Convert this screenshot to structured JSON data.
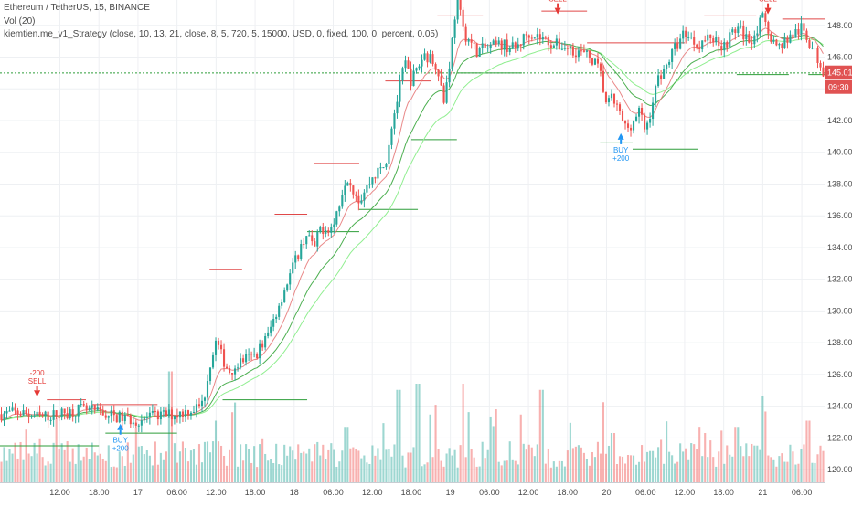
{
  "legend": {
    "symbol_line": "Ethereum / TetherUS, 15, BINANCE",
    "volume_line": "Vol (20)",
    "strategy_line": "kiemtien.me_v1_Strategy (close, 10, 13, 21, close, 8, 5, 720, 5, 15000, USD, 0, fixed, 100, 0, percent, 0.05)"
  },
  "colors": {
    "up": "#26a69a",
    "down": "#ef5350",
    "ema_fast": "#90ee90",
    "ema_slow": "#4caf50",
    "ema_red": "#e57373",
    "stop_line": "#e04848",
    "support_line": "#2e9e3a",
    "grid": "#eef0f3",
    "price_tag": "#e05252",
    "buy": "#2196f3",
    "sell": "#e53935"
  },
  "chart_data": {
    "type": "candlestick",
    "symbol": "Ethereum / TetherUS",
    "interval": "15",
    "exchange": "BINANCE",
    "y_ticks": [
      "120.00",
      "122.00",
      "124.00",
      "126.00",
      "128.00",
      "130.00",
      "132.00",
      "134.00",
      "136.00",
      "138.00",
      "140.00",
      "142.00",
      "144.00",
      "146.00",
      "148.00"
    ],
    "ylim": [
      119.2,
      149.6
    ],
    "x_ticks": [
      "12:00",
      "18:00",
      "17",
      "06:00",
      "12:00",
      "18:00",
      "18",
      "06:00",
      "12:00",
      "18:00",
      "19",
      "06:00",
      "12:00",
      "18:00",
      "20",
      "06:00",
      "12:00",
      "18:00",
      "21",
      "06:00"
    ],
    "x_tick_time_h": [
      12,
      18,
      24,
      30,
      36,
      42,
      48,
      54,
      60,
      66,
      72,
      78,
      84,
      90,
      96,
      102,
      108,
      114,
      120,
      126
    ],
    "time_range_h": [
      2.8,
      129.5
    ],
    "last_price": "145.01",
    "countdown": "09:30",
    "last_price_value": 145.01,
    "dashed_level": 145.0,
    "price_path": [
      [
        2.8,
        123.5
      ],
      [
        6,
        123.6
      ],
      [
        9,
        123.3
      ],
      [
        12,
        123.5
      ],
      [
        15,
        123.8
      ],
      [
        18,
        123.6
      ],
      [
        21,
        123.3
      ],
      [
        24,
        123.1
      ],
      [
        27,
        123.4
      ],
      [
        30,
        123.5
      ],
      [
        33,
        123.9
      ],
      [
        34,
        124.2
      ],
      [
        35,
        126.5
      ],
      [
        36,
        128.1
      ],
      [
        37,
        127.0
      ],
      [
        38,
        126.2
      ],
      [
        40,
        126.9
      ],
      [
        42,
        127.2
      ],
      [
        44,
        128.5
      ],
      [
        46,
        130.8
      ],
      [
        48,
        133.0
      ],
      [
        50,
        135.0
      ],
      [
        51,
        133.8
      ],
      [
        52,
        135.2
      ],
      [
        54,
        135.3
      ],
      [
        56,
        138.6
      ],
      [
        58,
        137.0
      ],
      [
        60,
        138.4
      ],
      [
        62,
        139.2
      ],
      [
        63,
        141.8
      ],
      [
        64,
        143.6
      ],
      [
        65,
        145.7
      ],
      [
        66,
        144.5
      ],
      [
        68,
        146.2
      ],
      [
        70,
        145.5
      ],
      [
        71,
        143.2
      ],
      [
        72,
        146.0
      ],
      [
        73,
        149.8
      ],
      [
        74,
        147.6
      ],
      [
        76,
        146.4
      ],
      [
        78,
        146.6
      ],
      [
        80,
        146.8
      ],
      [
        82,
        146.5
      ],
      [
        84,
        147.6
      ],
      [
        86,
        147.2
      ],
      [
        88,
        146.8
      ],
      [
        90,
        146.6
      ],
      [
        92,
        146.3
      ],
      [
        94,
        145.8
      ],
      [
        95,
        145.0
      ],
      [
        96,
        143.0
      ],
      [
        97,
        143.4
      ],
      [
        98,
        142.4
      ],
      [
        99,
        141.5
      ],
      [
        100,
        141.9
      ],
      [
        101,
        142.6
      ],
      [
        102,
        141.3
      ],
      [
        103,
        143.0
      ],
      [
        104,
        144.8
      ],
      [
        105,
        145.3
      ],
      [
        106,
        146.2
      ],
      [
        108,
        147.6
      ],
      [
        110,
        146.8
      ],
      [
        112,
        147.3
      ],
      [
        114,
        146.7
      ],
      [
        116,
        147.9
      ],
      [
        118,
        147.0
      ],
      [
        120,
        148.4
      ],
      [
        121,
        147.6
      ],
      [
        122,
        146.6
      ],
      [
        124,
        147.2
      ],
      [
        126,
        147.8
      ],
      [
        128,
        146.3
      ],
      [
        129.5,
        145.0
      ]
    ],
    "volume_spikes": [
      [
        9,
        0.35
      ],
      [
        21,
        0.25
      ],
      [
        29,
        0.9
      ],
      [
        36,
        0.5
      ],
      [
        43,
        0.35
      ],
      [
        56,
        0.45
      ],
      [
        64,
        0.75
      ],
      [
        67,
        0.8
      ],
      [
        69,
        0.55
      ],
      [
        74,
        0.8
      ],
      [
        83,
        0.55
      ],
      [
        86,
        0.75
      ],
      [
        95.5,
        0.65
      ],
      [
        97,
        0.4
      ],
      [
        111,
        0.4
      ],
      [
        116,
        0.45
      ],
      [
        120,
        0.7
      ],
      [
        127,
        0.5
      ]
    ],
    "signals": [
      {
        "type": "sell",
        "label": "SELL",
        "qty": "-200",
        "t": 8.5,
        "price": 124.6
      },
      {
        "type": "buy",
        "label": "BUY",
        "qty": "+200",
        "t": 21.3,
        "price": 122.9
      },
      {
        "type": "sell",
        "label": "SELL",
        "qty": "",
        "t": 88.5,
        "price": 148.7
      },
      {
        "type": "buy",
        "label": "BUY",
        "qty": "+200",
        "t": 98.2,
        "price": 141.2
      },
      {
        "type": "sell",
        "label": "SELL",
        "qty": "",
        "t": 120.8,
        "price": 148.7
      }
    ],
    "support_segments": [
      [
        0,
        18,
        121.5
      ],
      [
        19,
        30,
        122.3
      ],
      [
        37,
        50,
        124.4
      ],
      [
        50,
        58,
        135.0
      ],
      [
        58,
        67,
        136.4
      ],
      [
        66,
        73,
        140.8
      ],
      [
        73,
        83,
        145.0
      ],
      [
        95,
        100,
        140.6
      ],
      [
        100,
        110,
        140.2
      ],
      [
        116,
        124,
        144.9
      ],
      [
        127,
        131,
        144.9
      ]
    ],
    "stop_segments": [
      [
        10,
        16,
        124.4
      ],
      [
        17,
        27,
        124.1
      ],
      [
        35,
        40,
        132.6
      ],
      [
        45,
        50,
        136.1
      ],
      [
        51,
        58,
        139.3
      ],
      [
        62,
        69,
        144.5
      ],
      [
        70,
        77,
        148.6
      ],
      [
        86,
        93,
        148.9
      ],
      [
        93,
        108,
        146.9
      ],
      [
        111,
        119,
        148.6
      ],
      [
        123,
        129.5,
        148.4
      ]
    ]
  }
}
